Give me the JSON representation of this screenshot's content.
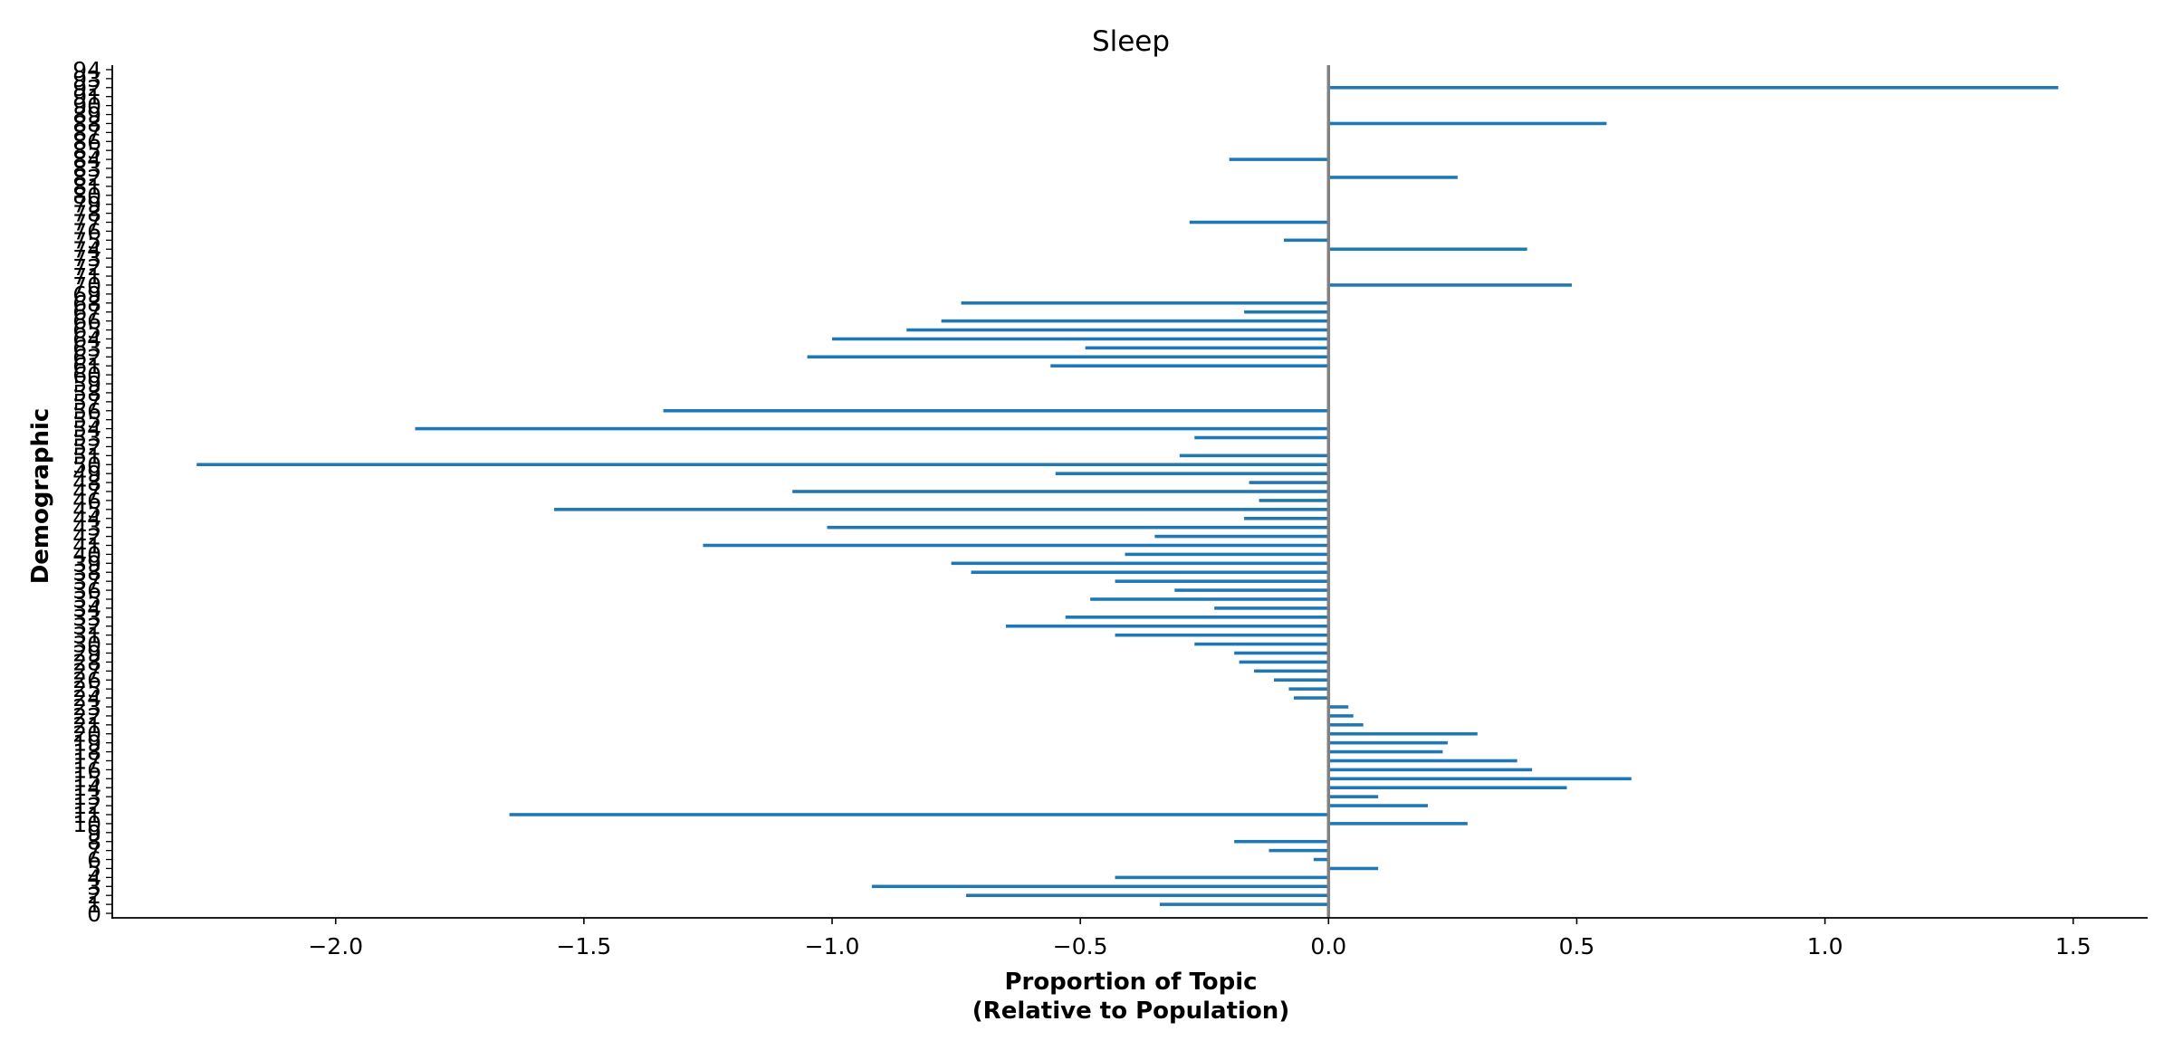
{
  "chart_data": {
    "type": "bar",
    "orientation": "horizontal",
    "title": "Sleep",
    "xlabel_lines": [
      "Proportion of Topic",
      "(Relative to Population)"
    ],
    "ylabel": "Demographic",
    "xlim": [
      -2.45,
      1.65
    ],
    "ylim": [
      -0.5,
      94.5
    ],
    "x_ticks": [
      -2.0,
      -1.5,
      -1.0,
      -0.5,
      0.0,
      0.5,
      1.0,
      1.5
    ],
    "x_tick_labels": [
      "−2.0",
      "−1.5",
      "−1.0",
      "−0.5",
      "0.0",
      "0.5",
      "1.0",
      "1.5"
    ],
    "zero_line": 0.0,
    "grid": false,
    "legend": "none",
    "bar_color": "#1f77b4",
    "zero_line_color": "#808080",
    "categories": [
      "0",
      "1",
      "2",
      "3",
      "4",
      "5",
      "6",
      "7",
      "8",
      "9",
      "10",
      "11",
      "12",
      "13",
      "14",
      "15",
      "16",
      "17",
      "18",
      "19",
      "20",
      "21",
      "22",
      "23",
      "24",
      "25",
      "26",
      "27",
      "28",
      "29",
      "30",
      "31",
      "32",
      "33",
      "34",
      "35",
      "36",
      "37",
      "38",
      "39",
      "40",
      "41",
      "42",
      "43",
      "44",
      "45",
      "46",
      "47",
      "48",
      "49",
      "50",
      "51",
      "52",
      "53",
      "54",
      "55",
      "56",
      "57",
      "58",
      "59",
      "60",
      "61",
      "62",
      "63",
      "64",
      "65",
      "66",
      "67",
      "68",
      "69",
      "70",
      "71",
      "72",
      "73",
      "74",
      "75",
      "76",
      "77",
      "78",
      "79",
      "80",
      "81",
      "82",
      "83",
      "84",
      "85",
      "86",
      "87",
      "88",
      "89",
      "90",
      "91",
      "92",
      "93",
      "94"
    ],
    "values": [
      0,
      -0.34,
      -0.73,
      -0.92,
      -0.43,
      0.1,
      -0.03,
      -0.12,
      -0.19,
      0,
      0.28,
      -1.65,
      0.2,
      0.1,
      0.48,
      0.61,
      0.41,
      0.38,
      0.23,
      0.24,
      0.3,
      0.07,
      0.05,
      0.04,
      -0.07,
      -0.08,
      -0.11,
      -0.15,
      -0.18,
      -0.19,
      -0.27,
      -0.43,
      -0.65,
      -0.53,
      -0.23,
      -0.48,
      -0.31,
      -0.43,
      -0.72,
      -0.76,
      -0.41,
      -1.26,
      -0.35,
      -1.01,
      -0.17,
      -1.56,
      -0.14,
      -1.08,
      -0.16,
      -0.55,
      -2.28,
      -0.3,
      0,
      -0.27,
      -1.84,
      0,
      -1.34,
      0,
      0,
      0,
      0,
      -0.56,
      -1.05,
      -0.49,
      -1.0,
      -0.85,
      -0.78,
      -0.17,
      -0.74,
      0,
      0.49,
      0,
      0,
      0,
      0.4,
      -0.09,
      0,
      -0.28,
      0,
      0,
      0,
      0,
      0.26,
      0,
      -0.2,
      0,
      0,
      0,
      0.56,
      0,
      0,
      0,
      1.47,
      0,
      0
    ]
  }
}
